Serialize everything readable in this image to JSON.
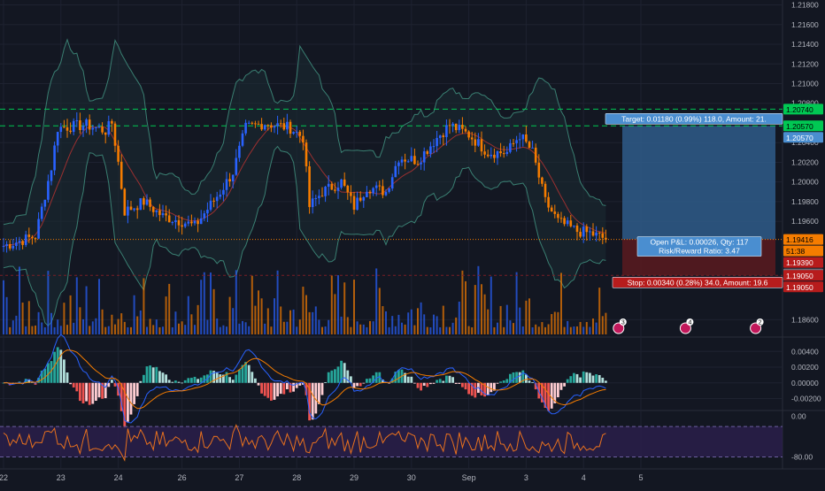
{
  "theme": {
    "background": "#131722",
    "grid": "#1e2230",
    "axis_text": "#b2b5be",
    "bull": "#2962ff",
    "bear": "#f57c00",
    "bb": "#3a7f72",
    "bb_fill": "#1b2b33",
    "ma": "#9b3030",
    "macd_line": "#2962ff",
    "signal_line": "#f57c00",
    "hist_pos": "#26a69a",
    "hist_pos_light": "#b2dfdb",
    "hist_neg": "#ef5350",
    "hist_neg_light": "#ffcdd2",
    "rsi_line": "#e8711e",
    "rsi_band": "#2a1f4a",
    "target_green": "#00c853",
    "profit_zone": "#2f5c8a",
    "loss_zone": "#5a1a1f",
    "label_blue": "#4a8ed0",
    "label_red": "#b71c1c"
  },
  "chart_data": [
    {
      "type": "candlestick",
      "title": "",
      "ylim": [
        1.1845,
        1.2185
      ],
      "y_ticks": [
        "1.21800",
        "1.21600",
        "1.21400",
        "1.21200",
        "1.21000",
        "1.20800",
        "1.20400",
        "1.20200",
        "1.20000",
        "1.19800",
        "1.19600",
        "1.18600"
      ],
      "y_tick_values": [
        1.218,
        1.216,
        1.214,
        1.212,
        1.21,
        1.208,
        1.204,
        1.202,
        1.2,
        1.198,
        1.196,
        1.186
      ],
      "x_ticks": [
        "22",
        "23",
        "24",
        "26",
        "27",
        "28",
        "29",
        "30",
        "Sep",
        "3",
        "4",
        "5"
      ],
      "x_tick_index": [
        0,
        18,
        36,
        56,
        74,
        92,
        110,
        128,
        146,
        164,
        182,
        200
      ],
      "bars_visible": 190,
      "anchors": [
        [
          0,
          1.1935
        ],
        [
          10,
          1.1945
        ],
        [
          15,
          1.2015
        ],
        [
          17,
          1.2055
        ],
        [
          26,
          1.2058
        ],
        [
          32,
          1.2052
        ],
        [
          34,
          1.206
        ],
        [
          36,
          1.202
        ],
        [
          38,
          1.197
        ],
        [
          44,
          1.198
        ],
        [
          50,
          1.1965
        ],
        [
          56,
          1.196
        ],
        [
          60,
          1.1955
        ],
        [
          68,
          1.199
        ],
        [
          72,
          1.201
        ],
        [
          76,
          1.2055
        ],
        [
          82,
          1.206
        ],
        [
          90,
          1.2055
        ],
        [
          94,
          1.2045
        ],
        [
          96,
          1.1975
        ],
        [
          100,
          1.199
        ],
        [
          106,
          1.2
        ],
        [
          110,
          1.1975
        ],
        [
          114,
          1.1995
        ],
        [
          120,
          1.199
        ],
        [
          124,
          1.2025
        ],
        [
          130,
          1.2022
        ],
        [
          136,
          1.2045
        ],
        [
          140,
          1.2058
        ],
        [
          146,
          1.2048
        ],
        [
          152,
          1.203
        ],
        [
          158,
          1.203
        ],
        [
          162,
          1.2048
        ],
        [
          166,
          1.203
        ],
        [
          170,
          1.198
        ],
        [
          174,
          1.196
        ],
        [
          180,
          1.195
        ],
        [
          184,
          1.1948
        ],
        [
          189,
          1.1942
        ]
      ],
      "bollinger": {
        "upper_offset": 0.0065,
        "lower_offset": 0.0065,
        "period": 20
      },
      "volume": {
        "max_height": 70
      },
      "target_level": "1.20740",
      "entry_high_level": "1.20570",
      "current_price": "1.19416",
      "countdown": "51:38",
      "stop_levels": [
        "1.19390",
        "1.19390"
      ],
      "lower_levels": [
        "1.19050",
        "1.19050"
      ],
      "target_price": 1.2057,
      "green_line_1": 1.2074,
      "green_line_2": 1.2057,
      "entry_price": 1.19416,
      "stop_price": 1.1905,
      "position_labels": {
        "target": "Target: 0.01180 (0.99%) 118.0, Amount: 21.",
        "open_pnl": "Open P&L: 0.00026, Qty: 117",
        "risk_reward": "Risk/Reward Ratio: 3.47",
        "stop": "Stop: 0.00340 (0.28%) 34.0, Amount: 19.6"
      },
      "event_markers": [
        {
          "index": 193,
          "count": "3"
        },
        {
          "index": 214,
          "count": "4"
        },
        {
          "index": 236,
          "count": "2"
        }
      ]
    },
    {
      "type": "macd",
      "ylim": [
        -0.0033,
        0.0055
      ],
      "y_ticks": [
        "0.00400",
        "0.00200",
        "0.00000",
        "-0.00200"
      ],
      "y_tick_values": [
        0.004,
        0.002,
        0.0,
        -0.002
      ]
    },
    {
      "type": "rsi",
      "ylim": [
        -100,
        8
      ],
      "y_ticks": [
        "0.00",
        "-80.00"
      ],
      "y_tick_values": [
        0,
        -80
      ],
      "band": [
        -80,
        -20
      ]
    }
  ]
}
